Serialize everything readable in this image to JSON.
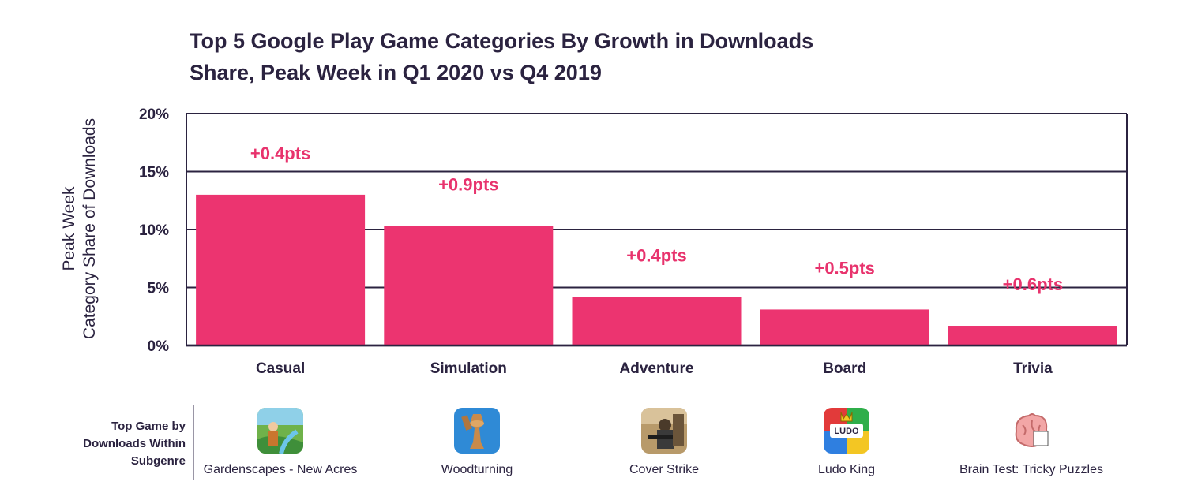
{
  "title_line1": "Top 5 Google Play Game Categories By Growth in Downloads",
  "title_line2": "Share, Peak Week in Q1 2020 vs Q4 2019",
  "ylabel_line1": "Peak Week",
  "ylabel_line2": "Category Share of Downloads",
  "games_label": "Top Game by Downloads  Within Subgenre",
  "chart_data": {
    "type": "bar",
    "title": "Top 5 Google Play Game Categories By Growth in Downloads Share, Peak Week in Q1 2020 vs Q4 2019",
    "ylabel": "Peak Week Category Share of Downloads",
    "xlabel": "",
    "categories": [
      "Casual",
      "Simulation",
      "Adventure",
      "Board",
      "Trivia"
    ],
    "values": [
      13.0,
      10.3,
      4.2,
      3.1,
      1.7
    ],
    "annotations": [
      "+0.4pts",
      "+0.9pts",
      "+0.4pts",
      "+0.5pts",
      "+0.6pts"
    ],
    "ylim": [
      0,
      20
    ],
    "yticks": [
      0,
      5,
      10,
      15,
      20
    ],
    "ytick_labels": [
      "0%",
      "5%",
      "10%",
      "15%",
      "20%"
    ],
    "grid": true,
    "bar_color": "#ec3470",
    "annotation_color": "#e8336d"
  },
  "games": [
    {
      "name": "Gardenscapes - New Acres",
      "icon": "gardenscapes-icon"
    },
    {
      "name": "Woodturning",
      "icon": "woodturning-icon"
    },
    {
      "name": "Cover Strike",
      "icon": "cover-strike-icon"
    },
    {
      "name": "Ludo King",
      "icon": "ludo-king-icon"
    },
    {
      "name": "Brain Test: Tricky Puzzles",
      "icon": "brain-test-icon"
    }
  ]
}
